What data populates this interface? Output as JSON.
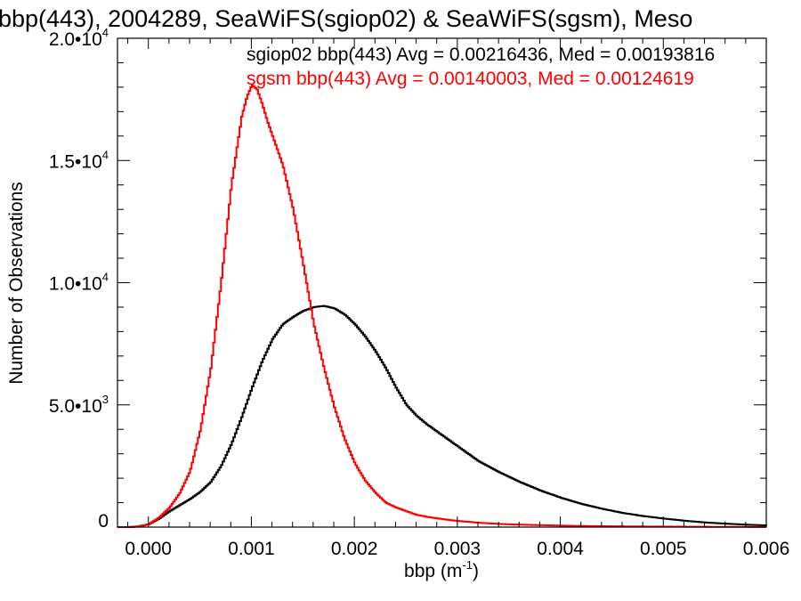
{
  "chart_data": {
    "type": "line",
    "style": "histogram-step",
    "title": "bbp(443), 2004289, SeaWiFS(sgiop02) & SeaWiFS(sgsm), Meso",
    "xlabel": "bbp (m",
    "xlabel_sup": "-1",
    "xlabel_close": ")",
    "ylabel": "Number of Observations",
    "xlim": [
      -0.0003,
      0.006
    ],
    "ylim": [
      0,
      20000
    ],
    "grid": false,
    "x_ticks": [
      0.0,
      0.001,
      0.002,
      0.003,
      0.004,
      0.005,
      0.006
    ],
    "x_tick_labels": [
      "0.000",
      "0.001",
      "0.002",
      "0.003",
      "0.004",
      "0.005",
      "0.006"
    ],
    "y_ticks": [
      {
        "value": 0,
        "mantissa": "0",
        "exp": ""
      },
      {
        "value": 5000,
        "mantissa": "5.0•10",
        "exp": "3"
      },
      {
        "value": 10000,
        "mantissa": "1.0•10",
        "exp": "4"
      },
      {
        "value": 15000,
        "mantissa": "1.5•10",
        "exp": "4"
      },
      {
        "value": 20000,
        "mantissa": "2.0•10",
        "exp": "4"
      }
    ],
    "annotations": [
      {
        "text": "sgiop02 bbp(443) Avg = 0.00216436, Med = 0.00193816",
        "color": "#000000"
      },
      {
        "text": "sgsm bbp(443) Avg = 0.00140003, Med = 0.00124619",
        "color": "#ff0000"
      }
    ],
    "series": [
      {
        "color": "#000000",
        "x": [
          -0.0003,
          -0.0002,
          -0.0001,
          0.0,
          0.0001,
          0.0002,
          0.0003,
          0.0004,
          0.0005,
          0.0006,
          0.0007,
          0.0008,
          0.0009,
          0.001,
          0.0011,
          0.0012,
          0.0013,
          0.0014,
          0.0015,
          0.0016,
          0.0017,
          0.0018,
          0.0019,
          0.002,
          0.0021,
          0.0022,
          0.0023,
          0.0024,
          0.0025,
          0.0026,
          0.0027,
          0.0028,
          0.0029,
          0.003,
          0.0032,
          0.0034,
          0.0036,
          0.0038,
          0.004,
          0.0042,
          0.0044,
          0.0046,
          0.0048,
          0.005,
          0.0052,
          0.0054,
          0.0056,
          0.0058,
          0.006
        ],
        "y": [
          0,
          0,
          30,
          120,
          350,
          650,
          900,
          1150,
          1450,
          1850,
          2500,
          3400,
          4500,
          5700,
          6800,
          7700,
          8300,
          8600,
          8850,
          9000,
          9050,
          8950,
          8700,
          8300,
          7800,
          7200,
          6500,
          5700,
          5000,
          4550,
          4200,
          3900,
          3600,
          3300,
          2700,
          2250,
          1850,
          1500,
          1200,
          950,
          750,
          580,
          450,
          350,
          260,
          190,
          140,
          100,
          70
        ]
      },
      {
        "color": "#ff0000",
        "x": [
          -0.0003,
          -0.0002,
          -0.0001,
          0.0,
          0.0001,
          0.0002,
          0.0003,
          0.0004,
          0.0005,
          0.0006,
          0.0007,
          0.0008,
          0.0009,
          0.00095,
          0.001,
          0.00105,
          0.0011,
          0.00115,
          0.0012,
          0.0013,
          0.0014,
          0.0015,
          0.0016,
          0.0017,
          0.0018,
          0.0019,
          0.002,
          0.0021,
          0.0022,
          0.0023,
          0.0024,
          0.0025,
          0.0026,
          0.0027,
          0.0028,
          0.0029,
          0.003,
          0.0032,
          0.0034,
          0.0036,
          0.0038,
          0.004,
          0.0043,
          0.0046,
          0.005,
          0.0055,
          0.006
        ],
        "y": [
          0,
          0,
          20,
          120,
          400,
          800,
          1400,
          2300,
          4000,
          6500,
          10000,
          14000,
          16800,
          17600,
          18100,
          17900,
          17300,
          16600,
          16000,
          14800,
          13000,
          10700,
          8300,
          6500,
          4900,
          3600,
          2600,
          1900,
          1400,
          1000,
          800,
          650,
          500,
          420,
          360,
          300,
          250,
          180,
          130,
          100,
          80,
          60,
          40,
          30,
          20,
          10,
          5
        ]
      }
    ]
  }
}
